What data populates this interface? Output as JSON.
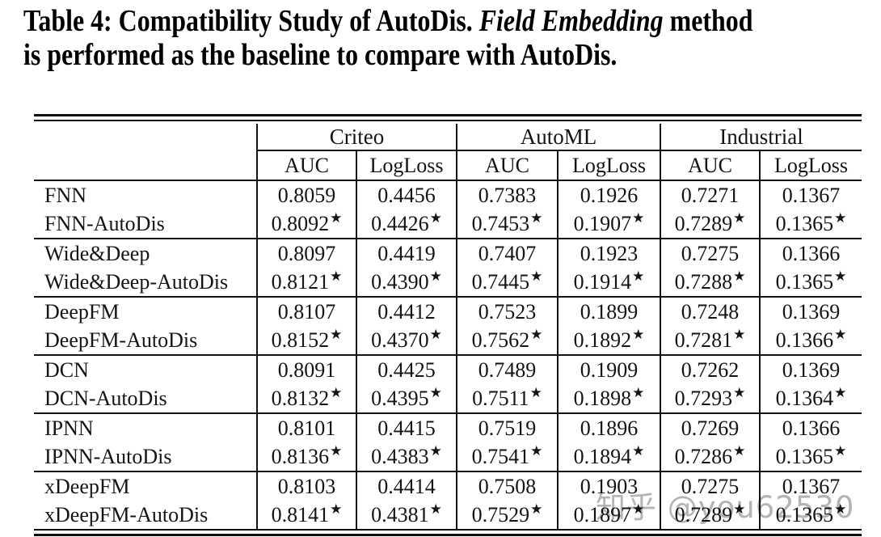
{
  "caption": {
    "line1_regular": "Table 4: Compatibility Study of AutoDis. ",
    "line1_italic": "Field Embedding",
    "line1_after": " method",
    "line2": "is performed as the baseline to compare with AutoDis."
  },
  "table": {
    "star_symbol": "★",
    "col_groups": [
      {
        "label": "Criteo",
        "cols": [
          "AUC",
          "LogLoss"
        ]
      },
      {
        "label": "AutoML",
        "cols": [
          "AUC",
          "LogLoss"
        ]
      },
      {
        "label": "Industrial",
        "cols": [
          "AUC",
          "LogLoss"
        ]
      }
    ],
    "row_groups": [
      {
        "rows": [
          {
            "label": "FNN",
            "star": false,
            "values": [
              "0.8059",
              "0.4456",
              "0.7383",
              "0.1926",
              "0.7271",
              "0.1367"
            ]
          },
          {
            "label": "FNN-AutoDis",
            "star": true,
            "values": [
              "0.8092",
              "0.4426",
              "0.7453",
              "0.1907",
              "0.7289",
              "0.1365"
            ]
          }
        ]
      },
      {
        "rows": [
          {
            "label": "Wide&Deep",
            "star": false,
            "values": [
              "0.8097",
              "0.4419",
              "0.7407",
              "0.1923",
              "0.7275",
              "0.1366"
            ]
          },
          {
            "label": "Wide&Deep-AutoDis",
            "star": true,
            "values": [
              "0.8121",
              "0.4390",
              "0.7445",
              "0.1914",
              "0.7288",
              "0.1365"
            ]
          }
        ]
      },
      {
        "rows": [
          {
            "label": "DeepFM",
            "star": false,
            "values": [
              "0.8107",
              "0.4412",
              "0.7523",
              "0.1899",
              "0.7248",
              "0.1369"
            ]
          },
          {
            "label": "DeepFM-AutoDis",
            "star": true,
            "values": [
              "0.8152",
              "0.4370",
              "0.7562",
              "0.1892",
              "0.7281",
              "0.1366"
            ]
          }
        ]
      },
      {
        "rows": [
          {
            "label": "DCN",
            "star": false,
            "values": [
              "0.8091",
              "0.4425",
              "0.7489",
              "0.1909",
              "0.7262",
              "0.1369"
            ]
          },
          {
            "label": "DCN-AutoDis",
            "star": true,
            "values": [
              "0.8132",
              "0.4395",
              "0.7511",
              "0.1898",
              "0.7293",
              "0.1364"
            ]
          }
        ]
      },
      {
        "rows": [
          {
            "label": "IPNN",
            "star": false,
            "values": [
              "0.8101",
              "0.4415",
              "0.7519",
              "0.1896",
              "0.7269",
              "0.1366"
            ]
          },
          {
            "label": "IPNN-AutoDis",
            "star": true,
            "values": [
              "0.8136",
              "0.4383",
              "0.7541",
              "0.1894",
              "0.7286",
              "0.1365"
            ]
          }
        ]
      },
      {
        "rows": [
          {
            "label": "xDeepFM",
            "star": false,
            "values": [
              "0.8103",
              "0.4414",
              "0.7508",
              "0.1903",
              "0.7275",
              "0.1367"
            ]
          },
          {
            "label": "xDeepFM-AutoDis",
            "star": true,
            "values": [
              "0.8141",
              "0.4381",
              "0.7529",
              "0.1897",
              "0.7289",
              "0.1365"
            ]
          }
        ]
      }
    ]
  },
  "watermark": {
    "text": "知乎 @you62530",
    "color": "#b4b4b4"
  }
}
